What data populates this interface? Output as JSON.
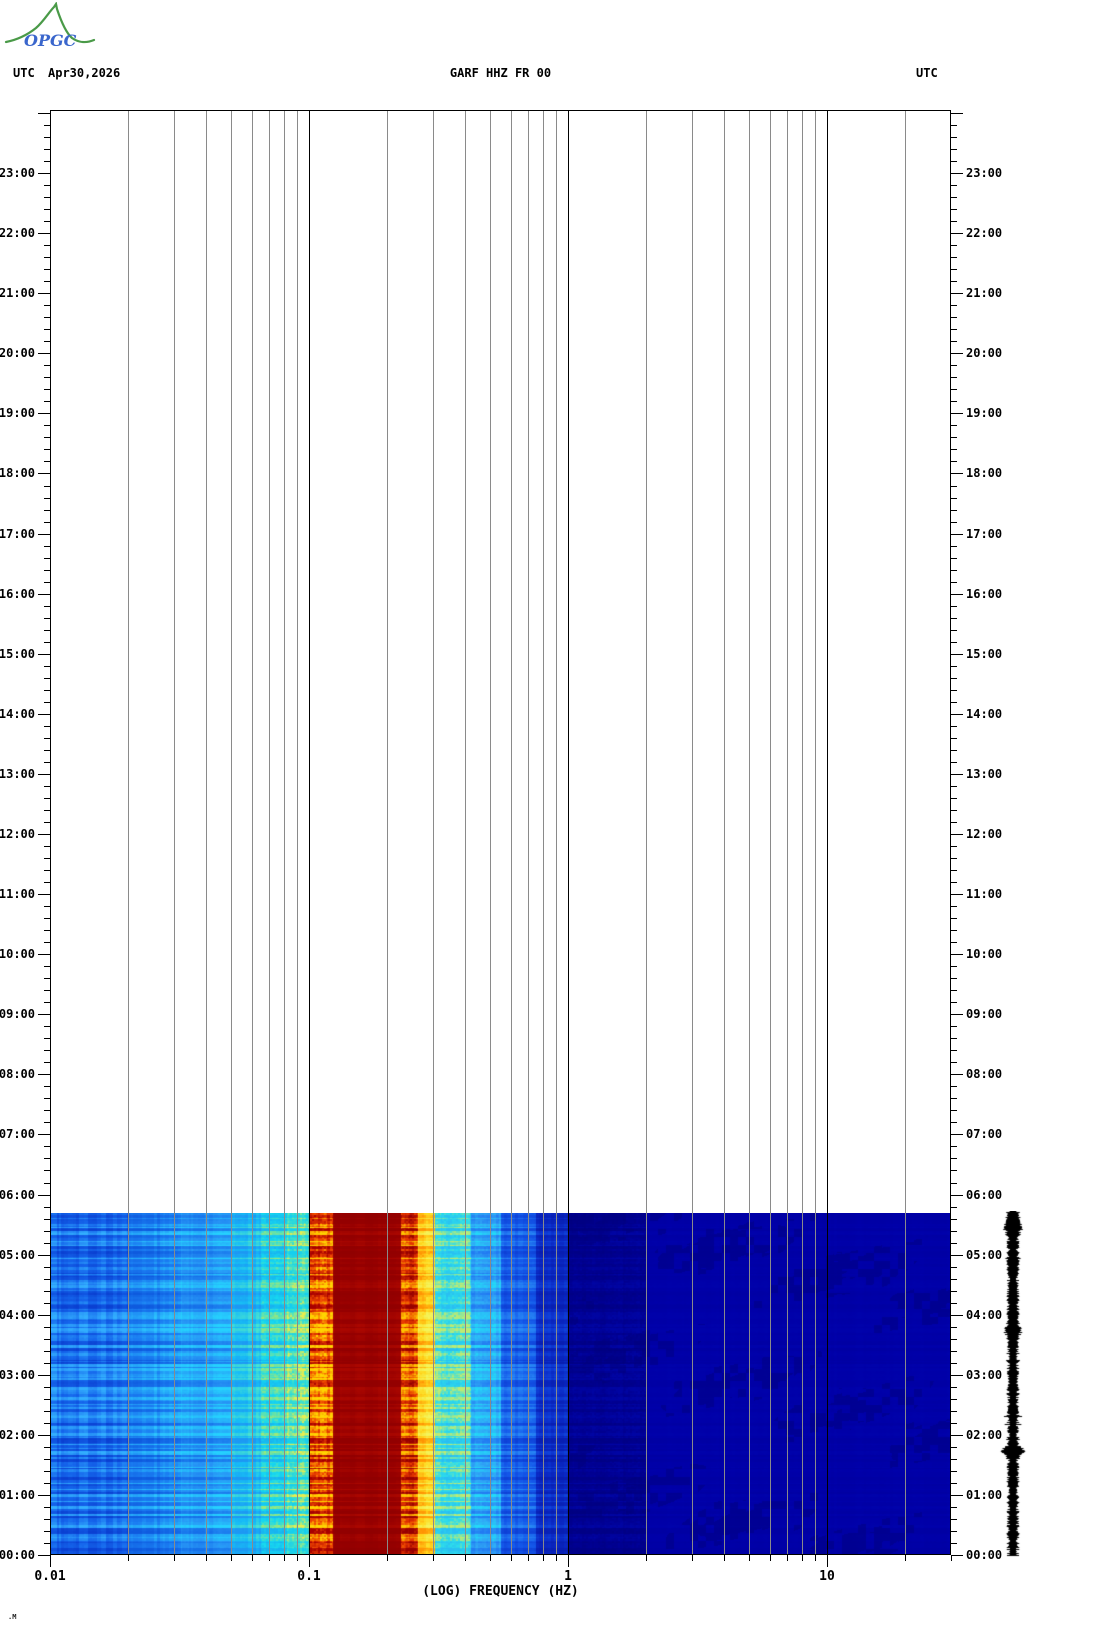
{
  "header": {
    "utc_left": "UTC",
    "date": "Apr30,2026",
    "station_title": "GARF HHZ FR 00",
    "utc_right": "UTC"
  },
  "logo": {
    "org": "OPGC",
    "mountain_color": "#4a9a48",
    "text_color": "#3a66cc"
  },
  "corner_mark": ".M",
  "axes": {
    "x": {
      "label": "(LOG) FREQUENCY (HZ)",
      "scale": "log",
      "min_hz": 0.01,
      "max_hz": 30.5,
      "major_ticks": [
        {
          "hz": 0.01,
          "label": "0.01"
        },
        {
          "hz": 0.1,
          "label": "0.1"
        },
        {
          "hz": 1,
          "label": "1"
        },
        {
          "hz": 10,
          "label": "10"
        }
      ],
      "minor_ticks_hz": [
        0.02,
        0.03,
        0.04,
        0.05,
        0.06,
        0.07,
        0.08,
        0.09,
        0.2,
        0.3,
        0.4,
        0.5,
        0.6,
        0.7,
        0.8,
        0.9,
        2,
        3,
        4,
        5,
        6,
        7,
        8,
        9,
        20,
        30
      ]
    },
    "y": {
      "timezone": "UTC",
      "hours": [
        "00:00",
        "01:00",
        "02:00",
        "03:00",
        "04:00",
        "05:00",
        "06:00",
        "07:00",
        "08:00",
        "09:00",
        "10:00",
        "11:00",
        "12:00",
        "13:00",
        "14:00",
        "15:00",
        "16:00",
        "17:00",
        "18:00",
        "19:00",
        "20:00",
        "21:00",
        "22:00",
        "23:00"
      ],
      "minor_step_minutes": 12
    }
  },
  "chart_data": {
    "type": "heatmap",
    "title": "GARF HHZ FR 00",
    "xlabel": "(LOG) FREQUENCY (HZ)",
    "x_scale": "log",
    "x_range_hz": [
      0.01,
      30.5
    ],
    "y_range_time_utc": [
      "00:00",
      "24:00"
    ],
    "data_time_span_utc": [
      "00:00",
      "05:41"
    ],
    "legend_position": "none",
    "grid_hz_gray": [
      0.02,
      0.03,
      0.04,
      0.05,
      0.06,
      0.07,
      0.08,
      0.09,
      0.2,
      0.3,
      0.4,
      0.5,
      0.6,
      0.7,
      0.8,
      0.9,
      2,
      3,
      4,
      5,
      6,
      7,
      8,
      9,
      20
    ],
    "grid_hz_black": [
      0.1,
      1,
      10
    ],
    "bands": [
      {
        "f0": 0.01,
        "f1": 0.02,
        "base": "#1565ec",
        "light": "#35b4ff",
        "dark": "#0838cc",
        "stripe": 0.55,
        "speckle": 0.05
      },
      {
        "f0": 0.02,
        "f1": 0.032,
        "base": "#1b7df2",
        "light": "#2fd2ff",
        "dark": "#0a4fd8",
        "stripe": 0.5,
        "speckle": 0.05
      },
      {
        "f0": 0.032,
        "f1": 0.05,
        "base": "#2795f6",
        "light": "#25dcff",
        "dark": "#0f62e4",
        "stripe": 0.5,
        "speckle": 0.08
      },
      {
        "f0": 0.05,
        "f1": 0.065,
        "base": "#17bdf6",
        "light": "#52e8c8",
        "dark": "#1f8af2",
        "stripe": 0.5,
        "speckle": 0.12
      },
      {
        "f0": 0.065,
        "f1": 0.082,
        "base": "#16d9f0",
        "light": "#a8ea6e",
        "dark": "#18aaf0",
        "stripe": 0.55,
        "speckle": 0.25
      },
      {
        "f0": 0.082,
        "f1": 0.1,
        "base": "#42e2c8",
        "light": "#e8ee4e",
        "dark": "#12ccf2",
        "stripe": 0.62,
        "speckle": 0.45
      },
      {
        "f0": 0.1,
        "f1": 0.123,
        "base": "#f04800",
        "light": "#ffd400",
        "dark": "#a80000",
        "stripe": 0.78,
        "speckle": 0.3
      },
      {
        "f0": 0.123,
        "f1": 0.225,
        "base": "#960000",
        "light": "#d01400",
        "dark": "#820000",
        "stripe": 0.2,
        "speckle": 0.04
      },
      {
        "f0": 0.225,
        "f1": 0.262,
        "base": "#e83800",
        "light": "#ffc400",
        "dark": "#980000",
        "stripe": 0.72,
        "speckle": 0.25
      },
      {
        "f0": 0.262,
        "f1": 0.305,
        "base": "#ffd81e",
        "light": "#f4f45a",
        "dark": "#ff8c00",
        "stripe": 0.6,
        "speckle": 0.25
      },
      {
        "f0": 0.305,
        "f1": 0.42,
        "base": "#2cdcec",
        "light": "#d8ee5c",
        "dark": "#28b4f4",
        "stripe": 0.5,
        "speckle": 0.35
      },
      {
        "f0": 0.42,
        "f1": 0.55,
        "base": "#30a8f6",
        "light": "#20e4f8",
        "dark": "#1e6cf0",
        "stripe": 0.5,
        "speckle": 0.18
      },
      {
        "f0": 0.55,
        "f1": 0.75,
        "base": "#1458ea",
        "light": "#2e96f8",
        "dark": "#0a34cc",
        "stripe": 0.45,
        "speckle": 0.1
      },
      {
        "f0": 0.75,
        "f1": 1.0,
        "base": "#0a28c4",
        "light": "#1450e6",
        "dark": "#0618a4",
        "stripe": 0.4,
        "speckle": 0.08
      },
      {
        "f0": 1.0,
        "f1": 2.0,
        "base": "#000092",
        "light": "#0008b0",
        "dark": "#00007a",
        "stripe": 0.35,
        "speckle": 0.35
      },
      {
        "f0": 2.0,
        "f1": 30.5,
        "base": "#0000a8",
        "light": "#0008b6",
        "dark": "#000090",
        "stripe": 0.14,
        "speckle": 0.15
      }
    ],
    "trace": {
      "description": "vertical helicorder amplitude trace of same time span",
      "color": "#000000"
    }
  }
}
